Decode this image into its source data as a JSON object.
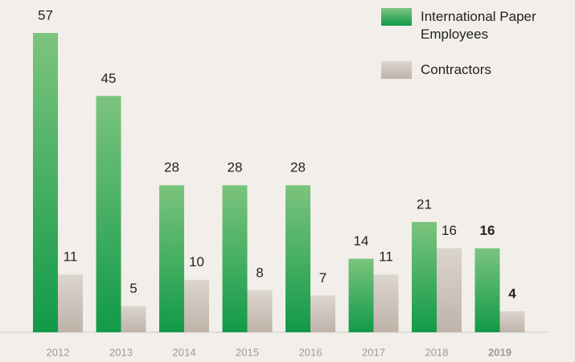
{
  "chart_data": {
    "type": "bar",
    "categories": [
      "2012",
      "2013",
      "2014",
      "2015",
      "2016",
      "2017",
      "2018",
      "2019"
    ],
    "series": [
      {
        "name": "International Paper Employees",
        "color": "#3aab5a",
        "values": [
          57,
          45,
          28,
          28,
          28,
          14,
          21,
          16
        ]
      },
      {
        "name": "Contractors",
        "color": "#cdc4bc",
        "values": [
          11,
          5,
          10,
          8,
          7,
          11,
          16,
          4
        ]
      }
    ],
    "highlight_category": 7,
    "legend": "upper right"
  }
}
